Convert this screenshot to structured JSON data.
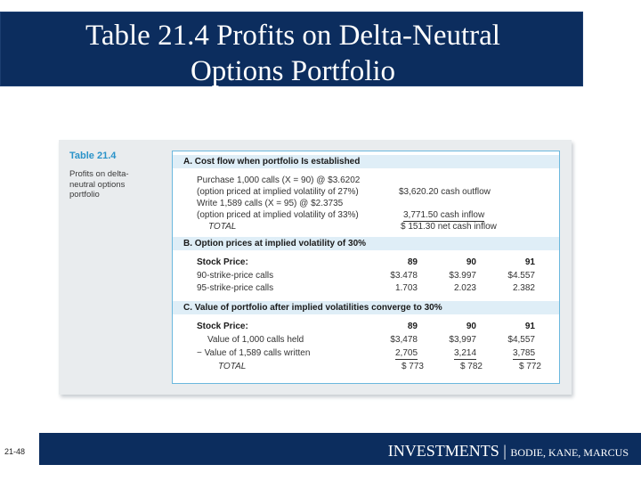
{
  "slide": {
    "title_line1": "Table 21.4 Profits on Delta-Neutral",
    "title_line2": "Options Portfolio",
    "page_number": "21-48",
    "footer_brand": "INVESTMENTS | ",
    "footer_authors": "BODIE, KANE, MARCUS",
    "colors": {
      "navy": "#0c2d5e",
      "table_title_blue": "#2a93c9",
      "table_border": "#6bb8de",
      "band": "#dfeef7"
    }
  },
  "table": {
    "label": "Table 21.4",
    "caption": "Profits on delta-\nneutral options\nportfolio",
    "section_a": {
      "header": "A. Cost flow when portfolio Is established",
      "rows": [
        {
          "desc": "Purchase 1,000 calls (X = 90) @ $3.6202",
          "value": ""
        },
        {
          "desc": "(option priced at implied volatility of 27%)",
          "value": "$3,620.20 cash outflow"
        },
        {
          "desc": "Write 1,589 calls (X = 95) @ $2.3735",
          "value": ""
        },
        {
          "desc": "(option priced at implied volatility of 33%)",
          "value": "3,771.50 cash inflow"
        }
      ],
      "total_label": "TOTAL",
      "total_value": "$   151.30 net cash inflow"
    },
    "section_b": {
      "header": "B. Option prices at implied volatility of 30%",
      "stock_price_label": "Stock Price:",
      "prices": [
        "89",
        "90",
        "91"
      ],
      "rows": [
        {
          "label": "90-strike-price calls",
          "values": [
            "$3.478",
            "$3.997",
            "$4.557"
          ]
        },
        {
          "label": "95-strike-price calls",
          "values": [
            "1.703",
            "2.023",
            "2.382"
          ]
        }
      ]
    },
    "section_c": {
      "header": "C. Value of portfolio after implied volatilities converge to 30%",
      "stock_price_label": "Stock Price:",
      "prices": [
        "89",
        "90",
        "91"
      ],
      "rows": [
        {
          "label": "Value of 1,000 calls held",
          "values": [
            "$3,478",
            "$3,997",
            "$4,557"
          ]
        },
        {
          "label": "− Value of 1,589 calls written",
          "values": [
            "2,705",
            "3,214",
            "3,785"
          ]
        }
      ],
      "total_label": "TOTAL",
      "total_values": [
        "$  773",
        "$  782",
        "$  772"
      ]
    }
  }
}
